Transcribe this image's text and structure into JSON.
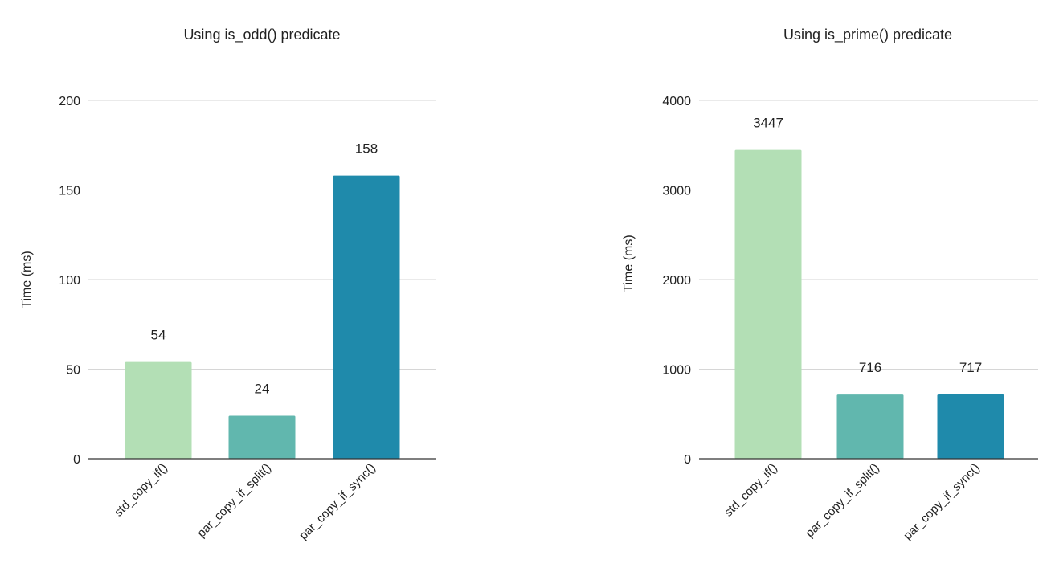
{
  "chart_data": [
    {
      "type": "bar",
      "title": "Using is_odd() predicate",
      "xlabel": "",
      "ylabel": "Time (ms)",
      "categories": [
        "std_copy_if()",
        "par_copy_if_split()",
        "par_copy_if_sync()"
      ],
      "values": [
        54,
        24,
        158
      ],
      "data_labels": [
        "54",
        "24",
        "158"
      ],
      "ylim": [
        0,
        200
      ],
      "yticks": [
        0,
        50,
        100,
        150,
        200
      ],
      "ytick_labels": [
        "0",
        "50",
        "100",
        "150",
        "200"
      ],
      "colors": [
        "#b3dfb5",
        "#61b7ae",
        "#1f8aab"
      ],
      "grid": true,
      "legend": "none"
    },
    {
      "type": "bar",
      "title": "Using is_prime() predicate",
      "xlabel": "",
      "ylabel": "Time (ms)",
      "categories": [
        "std_copy_if()",
        "par_copy_if_split()",
        "par_copy_if_sync()"
      ],
      "values": [
        3447,
        716,
        717
      ],
      "data_labels": [
        "3447",
        "716",
        "717"
      ],
      "ylim": [
        0,
        4000
      ],
      "yticks": [
        0,
        1000,
        2000,
        3000,
        4000
      ],
      "ytick_labels": [
        "0",
        "1000",
        "2000",
        "3000",
        "4000"
      ],
      "colors": [
        "#b3dfb5",
        "#61b7ae",
        "#1f8aab"
      ],
      "grid": true,
      "legend": "none"
    }
  ]
}
